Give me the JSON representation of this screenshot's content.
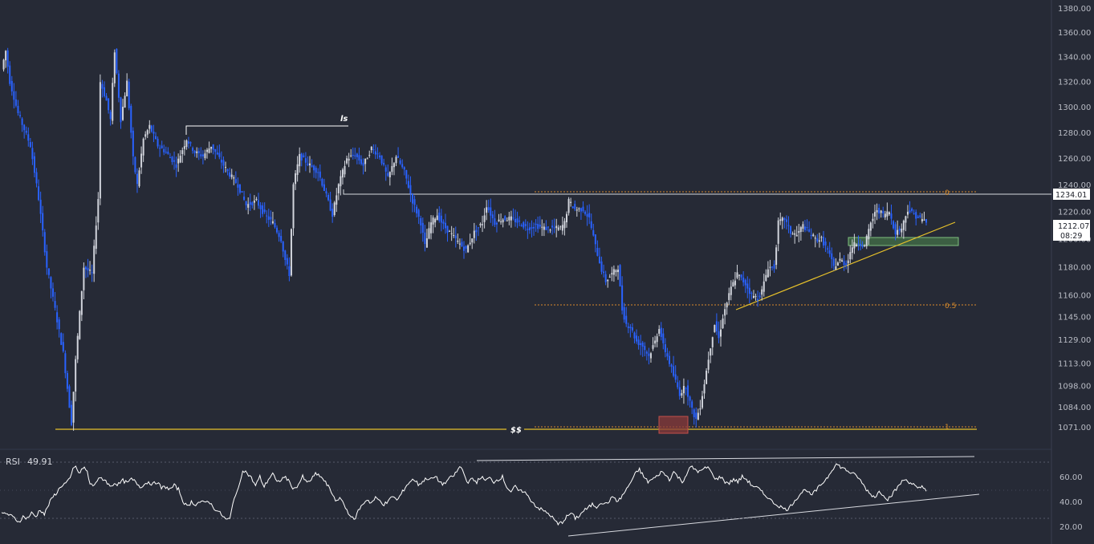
{
  "chart_data": [
    {
      "type": "candlestick",
      "price_axis": {
        "ticks": [
          "1380.00",
          "1360.00",
          "1340.00",
          "1320.00",
          "1300.00",
          "1280.00",
          "1260.00",
          "1240.00",
          "1220.00",
          "1200.00",
          "1180.00",
          "1160.00",
          "1145.00",
          "1129.00",
          "1113.00",
          "1098.00",
          "1084.00",
          "1071.00"
        ],
        "tick_values": [
          1380,
          1360,
          1340,
          1320,
          1300,
          1280,
          1260,
          1240,
          1220,
          1200,
          1180,
          1160,
          1145,
          1129,
          1113,
          1098,
          1084,
          1071
        ],
        "ylim": [
          1067,
          1383
        ],
        "scale": "log"
      },
      "current_price": "1212.07",
      "countdown": "08:29",
      "level_tag": "1234.01",
      "levels": {
        "resistance": 1234.01,
        "swing_low": 1073.5,
        "fib_0": 1235.5,
        "fib_05": 1155.0,
        "fib_1": 1075.5
      },
      "fib_labels": [
        "0",
        "0.5",
        "1"
      ],
      "annotations": {
        "liquidity_high": "ls",
        "liquidity_low": "$$"
      },
      "colors": {
        "bull": "#d1d4dc",
        "bear": "#2962ff",
        "support_line": "#e7c12a",
        "fib": "#d98b2c",
        "demand_zone": "#4f8a4f",
        "low_box": "#b23a3a"
      },
      "candle_count": 300,
      "anchors": [
        [
          0,
          1330
        ],
        [
          2,
          1345
        ],
        [
          4,
          1320
        ],
        [
          8,
          1295
        ],
        [
          14,
          1270
        ],
        [
          18,
          1230
        ],
        [
          22,
          1180
        ],
        [
          26,
          1150
        ],
        [
          30,
          1120
        ],
        [
          33,
          1085
        ],
        [
          34,
          1074
        ],
        [
          36,
          1115
        ],
        [
          40,
          1180
        ],
        [
          44,
          1175
        ],
        [
          47,
          1230
        ],
        [
          48,
          1320
        ],
        [
          51,
          1305
        ],
        [
          53,
          1290
        ],
        [
          55,
          1345
        ],
        [
          58,
          1290
        ],
        [
          61,
          1320
        ],
        [
          64,
          1260
        ],
        [
          66,
          1240
        ],
        [
          69,
          1275
        ],
        [
          72,
          1285
        ],
        [
          76,
          1270
        ],
        [
          80,
          1265
        ],
        [
          85,
          1255
        ],
        [
          90,
          1275
        ],
        [
          94,
          1265
        ],
        [
          98,
          1262
        ],
        [
          102,
          1270
        ],
        [
          106,
          1260
        ],
        [
          110,
          1250
        ],
        [
          115,
          1240
        ],
        [
          119,
          1225
        ],
        [
          124,
          1228
        ],
        [
          128,
          1218
        ],
        [
          132,
          1212
        ],
        [
          136,
          1200
        ],
        [
          138,
          1185
        ],
        [
          140,
          1175
        ],
        [
          142,
          1240
        ],
        [
          145,
          1262
        ],
        [
          150,
          1255
        ],
        [
          154,
          1250
        ],
        [
          158,
          1232
        ],
        [
          161,
          1218
        ],
        [
          164,
          1240
        ],
        [
          168,
          1260
        ],
        [
          172,
          1263
        ],
        [
          176,
          1255
        ],
        [
          180,
          1268
        ],
        [
          184,
          1262
        ],
        [
          188,
          1245
        ],
        [
          192,
          1262
        ],
        [
          196,
          1250
        ],
        [
          200,
          1228
        ],
        [
          204,
          1212
        ],
        [
          206,
          1195
        ],
        [
          209,
          1212
        ],
        [
          212,
          1218
        ],
        [
          215,
          1210
        ],
        [
          218,
          1205
        ],
        [
          222,
          1198
        ],
        [
          226,
          1192
        ],
        [
          230,
          1205
        ],
        [
          234,
          1212
        ],
        [
          236,
          1225
        ],
        [
          240,
          1212
        ],
        [
          244,
          1215
        ],
        [
          248,
          1215
        ],
        [
          252,
          1212
        ],
        [
          256,
          1208
        ],
        [
          260,
          1210
        ],
        [
          264,
          1208
        ],
        [
          268,
          1208
        ],
        [
          272,
          1208
        ],
        [
          274,
          1212
        ],
        [
          276,
          1228
        ],
        [
          279,
          1222
        ],
        [
          283,
          1222
        ],
        [
          286,
          1215
        ],
        [
          289,
          1195
        ],
        [
          292,
          1178
        ],
        [
          294,
          1170
        ],
        [
          297,
          1175
        ],
        [
          300,
          1180
        ],
        [
          302,
          1150
        ],
        [
          304,
          1140
        ],
        [
          306,
          1138
        ],
        [
          309,
          1128
        ],
        [
          312,
          1125
        ],
        [
          315,
          1118
        ],
        [
          318,
          1128
        ],
        [
          320,
          1138
        ],
        [
          322,
          1125
        ],
        [
          324,
          1118
        ],
        [
          327,
          1105
        ],
        [
          330,
          1093
        ],
        [
          333,
          1098
        ],
        [
          336,
          1082
        ],
        [
          338,
          1076
        ],
        [
          340,
          1085
        ],
        [
          342,
          1100
        ],
        [
          345,
          1125
        ],
        [
          347,
          1140
        ],
        [
          349,
          1130
        ],
        [
          351,
          1145
        ],
        [
          355,
          1165
        ],
        [
          358,
          1175
        ],
        [
          362,
          1168
        ],
        [
          365,
          1160
        ],
        [
          368,
          1158
        ],
        [
          370,
          1163
        ],
        [
          373,
          1180
        ],
        [
          376,
          1180
        ],
        [
          378,
          1212
        ],
        [
          381,
          1215
        ],
        [
          384,
          1205
        ],
        [
          387,
          1203
        ],
        [
          390,
          1210
        ],
        [
          393,
          1205
        ],
        [
          396,
          1200
        ],
        [
          399,
          1200
        ],
        [
          402,
          1192
        ],
        [
          405,
          1180
        ],
        [
          408,
          1185
        ],
        [
          411,
          1182
        ],
        [
          414,
          1195
        ],
        [
          417,
          1198
        ],
        [
          420,
          1195
        ],
        [
          423,
          1212
        ],
        [
          426,
          1222
        ],
        [
          429,
          1218
        ],
        [
          432,
          1220
        ],
        [
          435,
          1205
        ],
        [
          438,
          1208
        ],
        [
          441,
          1222
        ],
        [
          444,
          1218
        ],
        [
          447,
          1215
        ],
        [
          450,
          1213
        ]
      ]
    },
    {
      "type": "line",
      "title": "RSI",
      "value": "49.91",
      "axis": {
        "ticks": [
          "60.00",
          "40.00",
          "20.00"
        ],
        "tick_values": [
          60,
          40,
          20
        ],
        "ylim": [
          14,
          73
        ]
      },
      "color": "#ffffff",
      "anchors": [
        [
          0,
          30
        ],
        [
          3,
          31
        ],
        [
          6,
          29
        ],
        [
          9,
          27
        ],
        [
          12,
          24
        ],
        [
          15,
          28
        ],
        [
          18,
          27
        ],
        [
          21,
          31
        ],
        [
          24,
          28
        ],
        [
          27,
          34
        ],
        [
          30,
          30
        ],
        [
          33,
          38
        ],
        [
          36,
          44
        ],
        [
          39,
          48
        ],
        [
          42,
          53
        ],
        [
          45,
          55
        ],
        [
          48,
          58
        ],
        [
          50,
          66
        ],
        [
          52,
          69
        ],
        [
          54,
          62
        ],
        [
          56,
          66
        ],
        [
          58,
          67
        ],
        [
          60,
          64
        ],
        [
          62,
          54
        ],
        [
          64,
          53
        ],
        [
          67,
          57
        ],
        [
          70,
          59
        ],
        [
          73,
          57
        ],
        [
          76,
          52
        ],
        [
          79,
          55
        ],
        [
          82,
          54
        ],
        [
          85,
          57
        ],
        [
          88,
          55
        ],
        [
          91,
          58
        ],
        [
          94,
          56
        ],
        [
          97,
          52
        ],
        [
          100,
          54
        ],
        [
          103,
          56
        ],
        [
          106,
          54
        ],
        [
          109,
          56
        ],
        [
          112,
          51
        ],
        [
          115,
          52
        ],
        [
          118,
          50
        ],
        [
          121,
          53
        ],
        [
          124,
          50
        ],
        [
          127,
          41
        ],
        [
          130,
          36
        ],
        [
          133,
          40
        ],
        [
          136,
          38
        ],
        [
          139,
          40
        ],
        [
          142,
          39
        ],
        [
          145,
          41
        ],
        [
          148,
          36
        ],
        [
          151,
          33
        ],
        [
          154,
          30
        ],
        [
          157,
          26
        ],
        [
          160,
          26
        ],
        [
          163,
          44
        ],
        [
          166,
          50
        ],
        [
          169,
          66
        ],
        [
          172,
          63
        ],
        [
          175,
          59
        ],
        [
          178,
          53
        ],
        [
          181,
          60
        ],
        [
          184,
          52
        ],
        [
          187,
          58
        ],
        [
          190,
          63
        ],
        [
          193,
          55
        ],
        [
          196,
          58
        ],
        [
          199,
          60
        ],
        [
          202,
          55
        ],
        [
          205,
          50
        ],
        [
          208,
          54
        ],
        [
          211,
          60
        ],
        [
          214,
          55
        ],
        [
          217,
          58
        ],
        [
          220,
          62
        ],
        [
          223,
          61
        ],
        [
          226,
          57
        ],
        [
          229,
          52
        ],
        [
          232,
          46
        ],
        [
          235,
          40
        ],
        [
          238,
          43
        ],
        [
          241,
          35
        ],
        [
          244,
          30
        ],
        [
          247,
          25
        ],
        [
          250,
          33
        ],
        [
          253,
          38
        ],
        [
          256,
          42
        ],
        [
          259,
          39
        ],
        [
          262,
          43
        ],
        [
          265,
          41
        ],
        [
          268,
          38
        ],
        [
          271,
          40
        ],
        [
          274,
          45
        ],
        [
          277,
          41
        ],
        [
          280,
          46
        ],
        [
          283,
          52
        ],
        [
          286,
          56
        ],
        [
          289,
          58
        ],
        [
          292,
          54
        ],
        [
          295,
          56
        ],
        [
          298,
          59
        ],
        [
          301,
          58
        ],
        [
          304,
          60
        ],
        [
          307,
          56
        ],
        [
          310,
          54
        ],
        [
          313,
          58
        ],
        [
          316,
          60
        ],
        [
          319,
          64
        ],
        [
          321,
          68
        ],
        [
          323,
          66
        ],
        [
          325,
          59
        ],
        [
          327,
          56
        ],
        [
          330,
          58
        ],
        [
          333,
          56
        ],
        [
          336,
          60
        ],
        [
          339,
          57
        ],
        [
          342,
          59
        ],
        [
          345,
          56
        ],
        [
          348,
          58
        ],
        [
          351,
          60
        ],
        [
          354,
          52
        ],
        [
          357,
          48
        ],
        [
          360,
          52
        ],
        [
          363,
          48
        ],
        [
          366,
          49
        ],
        [
          369,
          44
        ],
        [
          372,
          40
        ],
        [
          375,
          36
        ],
        [
          378,
          34
        ],
        [
          381,
          32
        ],
        [
          384,
          30
        ],
        [
          387,
          26
        ],
        [
          390,
          22
        ],
        [
          393,
          24
        ],
        [
          396,
          28
        ],
        [
          399,
          31
        ],
        [
          402,
          27
        ],
        [
          405,
          29
        ],
        [
          408,
          33
        ],
        [
          411,
          35
        ],
        [
          414,
          38
        ],
        [
          417,
          36
        ],
        [
          420,
          40
        ],
        [
          423,
          38
        ],
        [
          426,
          41
        ],
        [
          429,
          44
        ],
        [
          432,
          40
        ],
        [
          435,
          45
        ],
        [
          438,
          50
        ],
        [
          441,
          56
        ],
        [
          444,
          62
        ],
        [
          447,
          66
        ],
        [
          450,
          60
        ],
        [
          453,
          56
        ],
        [
          456,
          58
        ],
        [
          459,
          60
        ],
        [
          462,
          64
        ],
        [
          465,
          62
        ],
        [
          468,
          58
        ],
        [
          471,
          64
        ],
        [
          474,
          60
        ],
        [
          477,
          56
        ],
        [
          480,
          62
        ],
        [
          483,
          68
        ],
        [
          486,
          66
        ],
        [
          489,
          64
        ],
        [
          492,
          66
        ],
        [
          495,
          68
        ],
        [
          498,
          62
        ],
        [
          501,
          58
        ],
        [
          504,
          60
        ],
        [
          507,
          56
        ],
        [
          510,
          55
        ],
        [
          513,
          58
        ],
        [
          516,
          56
        ],
        [
          519,
          60
        ],
        [
          522,
          58
        ],
        [
          525,
          54
        ],
        [
          528,
          52
        ],
        [
          531,
          50
        ],
        [
          534,
          46
        ],
        [
          537,
          44
        ],
        [
          540,
          40
        ],
        [
          543,
          38
        ],
        [
          546,
          36
        ],
        [
          549,
          34
        ],
        [
          552,
          35
        ],
        [
          555,
          40
        ],
        [
          558,
          44
        ],
        [
          561,
          48
        ],
        [
          564,
          50
        ],
        [
          567,
          45
        ],
        [
          570,
          48
        ],
        [
          573,
          52
        ],
        [
          576,
          56
        ],
        [
          579,
          60
        ],
        [
          582,
          66
        ],
        [
          585,
          70
        ],
        [
          588,
          68
        ],
        [
          591,
          66
        ],
        [
          594,
          64
        ],
        [
          597,
          62
        ],
        [
          600,
          60
        ],
        [
          603,
          55
        ],
        [
          606,
          50
        ],
        [
          609,
          46
        ],
        [
          612,
          44
        ],
        [
          615,
          48
        ],
        [
          618,
          46
        ],
        [
          621,
          42
        ],
        [
          624,
          46
        ],
        [
          627,
          50
        ],
        [
          630,
          55
        ],
        [
          633,
          58
        ],
        [
          636,
          56
        ],
        [
          639,
          54
        ],
        [
          642,
          50
        ],
        [
          645,
          52
        ],
        [
          648,
          50
        ]
      ]
    }
  ]
}
